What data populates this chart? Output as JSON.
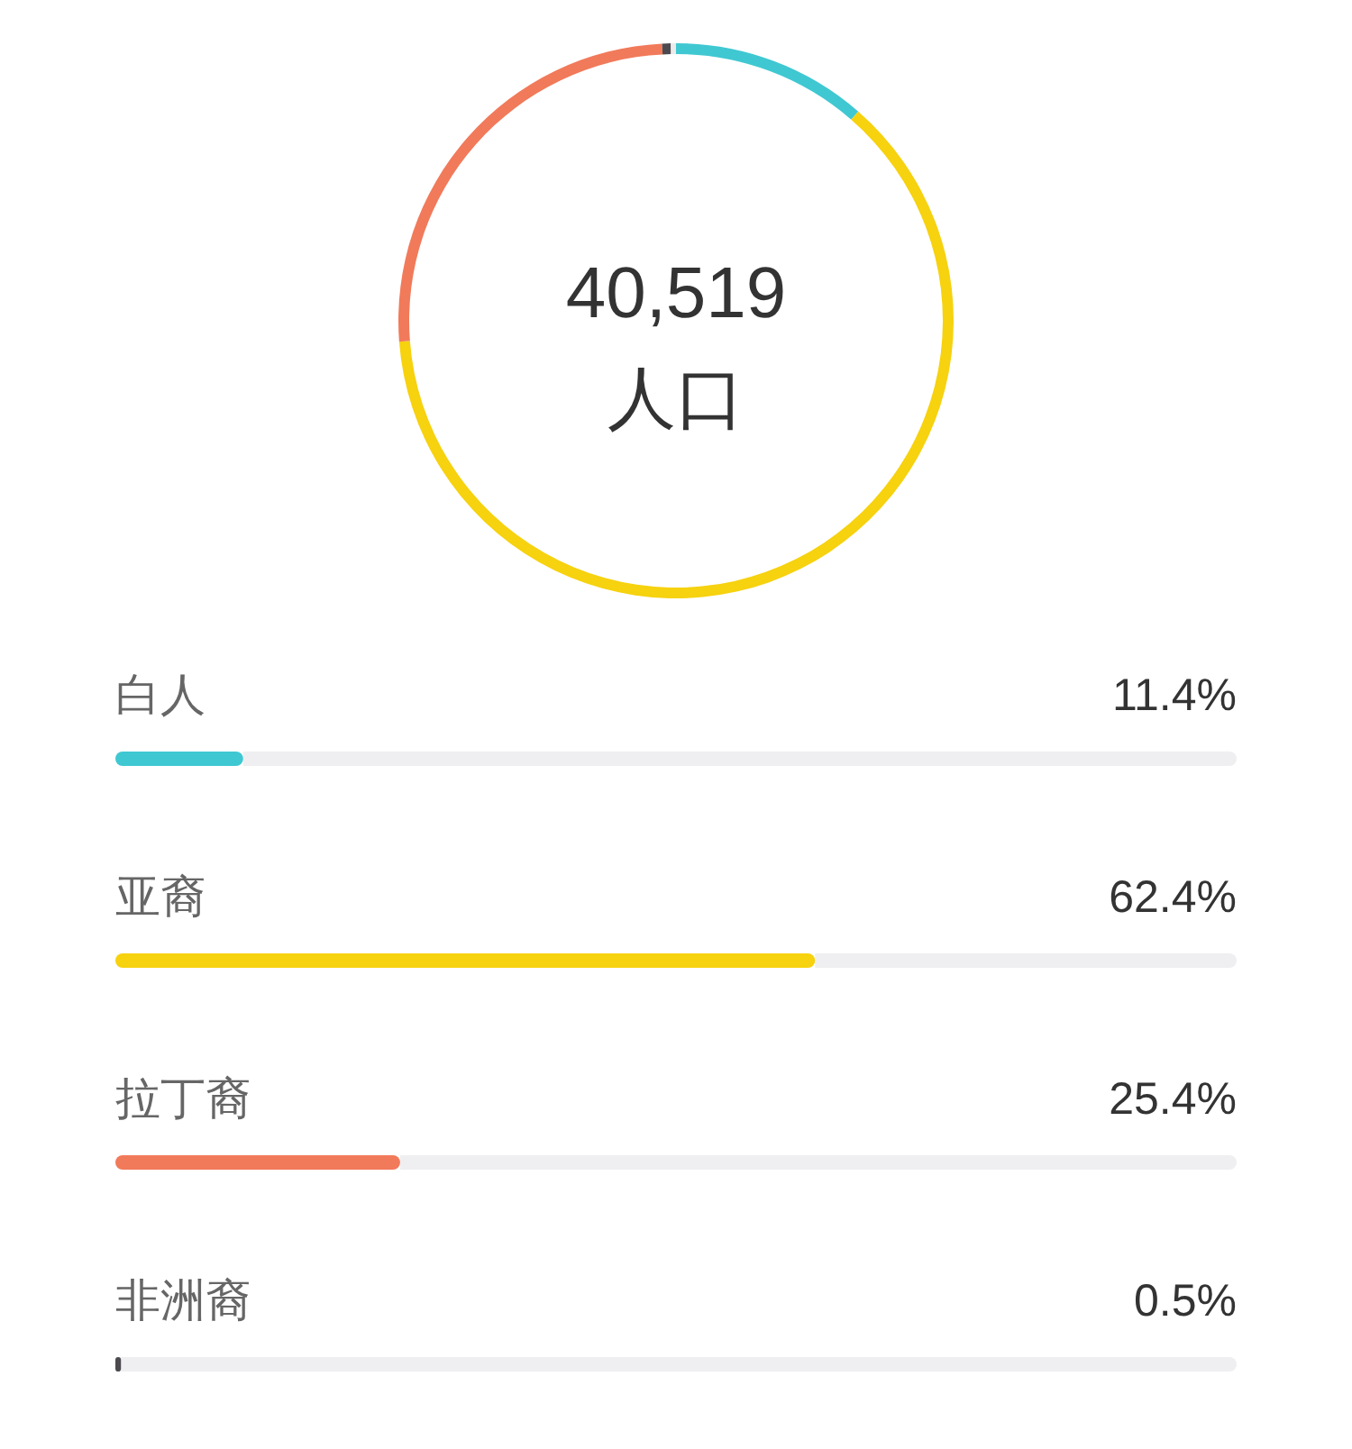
{
  "chart_data": [
    {
      "type": "donut",
      "categories": [
        null,
        null,
        null,
        null,
        null
      ],
      "values": [
        11.4,
        62.4,
        25.4,
        0.5,
        0.3
      ],
      "colors": [
        "#3fc8d2",
        "#f6d20f",
        "#f17a5a",
        "#4d4a4f",
        "#ebebeb"
      ],
      "annotations": [
        "40,519",
        "人口"
      ]
    },
    {
      "type": "bar",
      "orientation": "horizontal",
      "categories": [
        "白人",
        "亚裔",
        "拉丁裔",
        "非洲裔"
      ],
      "values": [
        11.4,
        62.4,
        25.4,
        0.5
      ],
      "colors": [
        "#3fc8d2",
        "#f6d20f",
        "#f17a5a",
        "#4d4a4f"
      ],
      "value_labels": [
        "11.4%",
        "62.4%",
        "25.4%",
        "0.5%"
      ],
      "xlim": [
        0,
        100
      ]
    }
  ]
}
